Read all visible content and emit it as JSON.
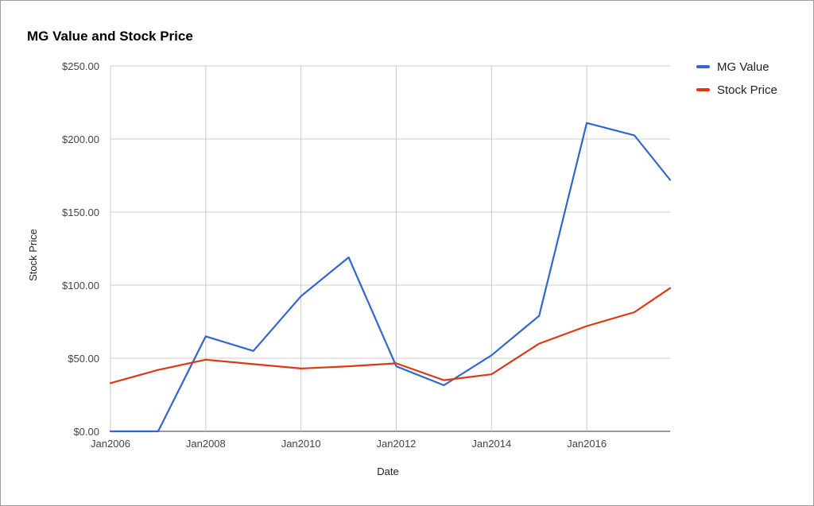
{
  "chart_data": {
    "type": "line",
    "title": "MG Value and Stock Price",
    "xlabel": "Date",
    "ylabel": "Stock Price",
    "x": [
      "2006-01",
      "2007-01",
      "2008-01",
      "2009-01",
      "2010-01",
      "2011-01",
      "2012-01",
      "2013-01",
      "2014-01",
      "2015-01",
      "2016-01",
      "2017-01",
      "2017-10"
    ],
    "series": [
      {
        "name": "MG Value",
        "color": "#3366cc",
        "values": [
          0,
          0,
          65,
          55,
          92.5,
          119,
          44.5,
          31.5,
          52,
          79,
          211,
          202.5,
          172
        ]
      },
      {
        "name": "Stock Price",
        "color": "#dc3912",
        "values": [
          33,
          42,
          49,
          46,
          43,
          44.5,
          46.5,
          35,
          39,
          60,
          72,
          81.5,
          98
        ]
      }
    ],
    "ylim": [
      0,
      250
    ],
    "yticks": [
      {
        "value": 0,
        "label": "$0.00"
      },
      {
        "value": 50,
        "label": "$50.00"
      },
      {
        "value": 100,
        "label": "$100.00"
      },
      {
        "value": 150,
        "label": "$150.00"
      },
      {
        "value": 200,
        "label": "$200.00"
      },
      {
        "value": 250,
        "label": "$250.00"
      }
    ],
    "xticks": [
      {
        "value": "2006-01",
        "label": "Jan2006"
      },
      {
        "value": "2008-01",
        "label": "Jan2008"
      },
      {
        "value": "2010-01",
        "label": "Jan2010"
      },
      {
        "value": "2012-01",
        "label": "Jan2012"
      },
      {
        "value": "2014-01",
        "label": "Jan2014"
      },
      {
        "value": "2016-01",
        "label": "Jan2016"
      }
    ],
    "grid": true,
    "legend": "right"
  }
}
